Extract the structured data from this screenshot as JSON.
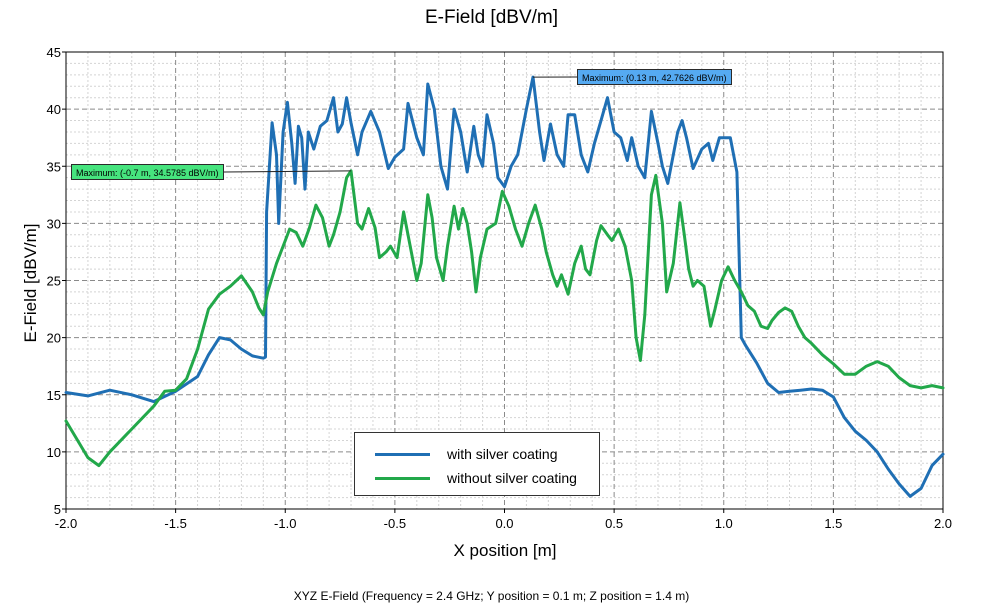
{
  "chart_data": {
    "type": "line",
    "title": "E-Field [dBV/m]",
    "xlabel": "X position [m]",
    "ylabel": "E-Field [dBV/m]",
    "footer": "XYZ E-Field (Frequency = 2.4 GHz; Y position = 0.1 m; Z position = 1.4 m)",
    "xlim": [
      -2.0,
      2.0
    ],
    "ylim": [
      5,
      45
    ],
    "xticks": [
      "-2.0",
      "-1.5",
      "-1.0",
      "-0.5",
      "0.0",
      "0.5",
      "1.0",
      "1.5",
      "2.0"
    ],
    "yticks": [
      "5",
      "10",
      "15",
      "20",
      "25",
      "30",
      "35",
      "40",
      "45"
    ],
    "grid": true,
    "legend_position": "bottom-center",
    "series": [
      {
        "name": "with silver coating",
        "color": "#1f6fb4",
        "points": [
          [
            -2.0,
            15.2
          ],
          [
            -1.9,
            14.9
          ],
          [
            -1.8,
            15.4
          ],
          [
            -1.7,
            15.0
          ],
          [
            -1.6,
            14.4
          ],
          [
            -1.5,
            15.3
          ],
          [
            -1.4,
            16.6
          ],
          [
            -1.35,
            18.5
          ],
          [
            -1.3,
            20.0
          ],
          [
            -1.25,
            19.8
          ],
          [
            -1.2,
            19.0
          ],
          [
            -1.15,
            18.4
          ],
          [
            -1.1,
            18.2
          ],
          [
            -1.09,
            18.3
          ],
          [
            -1.085,
            31.0
          ],
          [
            -1.06,
            38.8
          ],
          [
            -1.04,
            36.0
          ],
          [
            -1.03,
            30.0
          ],
          [
            -1.01,
            38.0
          ],
          [
            -0.99,
            40.6
          ],
          [
            -0.97,
            37.0
          ],
          [
            -0.955,
            33.5
          ],
          [
            -0.94,
            38.5
          ],
          [
            -0.925,
            37.5
          ],
          [
            -0.91,
            33.0
          ],
          [
            -0.895,
            38.0
          ],
          [
            -0.87,
            36.5
          ],
          [
            -0.84,
            38.5
          ],
          [
            -0.81,
            39.0
          ],
          [
            -0.78,
            41.0
          ],
          [
            -0.76,
            38.0
          ],
          [
            -0.74,
            38.7
          ],
          [
            -0.72,
            41.0
          ],
          [
            -0.7,
            38.8
          ],
          [
            -0.67,
            36.0
          ],
          [
            -0.65,
            38.0
          ],
          [
            -0.61,
            39.8
          ],
          [
            -0.57,
            38.0
          ],
          [
            -0.53,
            34.8
          ],
          [
            -0.5,
            35.8
          ],
          [
            -0.46,
            36.5
          ],
          [
            -0.44,
            40.5
          ],
          [
            -0.4,
            37.5
          ],
          [
            -0.37,
            36.0
          ],
          [
            -0.35,
            42.2
          ],
          [
            -0.32,
            40.0
          ],
          [
            -0.29,
            35.0
          ],
          [
            -0.26,
            33.0
          ],
          [
            -0.23,
            40.0
          ],
          [
            -0.2,
            38.0
          ],
          [
            -0.17,
            34.5
          ],
          [
            -0.14,
            38.5
          ],
          [
            -0.12,
            36.0
          ],
          [
            -0.1,
            35.0
          ],
          [
            -0.08,
            39.5
          ],
          [
            -0.05,
            37.0
          ],
          [
            -0.03,
            34.0
          ],
          [
            0.0,
            33.2
          ],
          [
            0.03,
            35.0
          ],
          [
            0.06,
            36.0
          ],
          [
            0.1,
            40.0
          ],
          [
            0.13,
            42.8
          ],
          [
            0.16,
            38.0
          ],
          [
            0.18,
            35.5
          ],
          [
            0.21,
            38.7
          ],
          [
            0.24,
            36.0
          ],
          [
            0.27,
            35.0
          ],
          [
            0.29,
            39.5
          ],
          [
            0.32,
            39.5
          ],
          [
            0.35,
            36.0
          ],
          [
            0.38,
            34.5
          ],
          [
            0.41,
            37.0
          ],
          [
            0.44,
            39.0
          ],
          [
            0.47,
            41.0
          ],
          [
            0.5,
            38.0
          ],
          [
            0.53,
            37.5
          ],
          [
            0.56,
            35.5
          ],
          [
            0.58,
            37.5
          ],
          [
            0.61,
            35.0
          ],
          [
            0.64,
            34.0
          ],
          [
            0.67,
            39.8
          ],
          [
            0.7,
            37.0
          ],
          [
            0.72,
            35.0
          ],
          [
            0.745,
            33.5
          ],
          [
            0.77,
            36.0
          ],
          [
            0.79,
            38.0
          ],
          [
            0.81,
            39.0
          ],
          [
            0.83,
            37.5
          ],
          [
            0.86,
            34.8
          ],
          [
            0.9,
            36.5
          ],
          [
            0.93,
            37.0
          ],
          [
            0.95,
            35.5
          ],
          [
            0.98,
            37.5
          ],
          [
            1.0,
            37.5
          ],
          [
            1.03,
            37.5
          ],
          [
            1.06,
            34.5
          ],
          [
            1.08,
            20.0
          ],
          [
            1.1,
            19.3
          ],
          [
            1.15,
            17.8
          ],
          [
            1.2,
            16.0
          ],
          [
            1.25,
            15.2
          ],
          [
            1.3,
            15.3
          ],
          [
            1.35,
            15.4
          ],
          [
            1.4,
            15.5
          ],
          [
            1.45,
            15.4
          ],
          [
            1.5,
            14.8
          ],
          [
            1.55,
            13.0
          ],
          [
            1.6,
            11.8
          ],
          [
            1.65,
            11.0
          ],
          [
            1.7,
            10.0
          ],
          [
            1.75,
            8.5
          ],
          [
            1.8,
            7.2
          ],
          [
            1.85,
            6.1
          ],
          [
            1.9,
            6.8
          ],
          [
            1.95,
            8.8
          ],
          [
            2.0,
            9.8
          ]
        ]
      },
      {
        "name": "without silver coating",
        "color": "#22a84a",
        "points": [
          [
            -2.0,
            12.7
          ],
          [
            -1.9,
            9.5
          ],
          [
            -1.85,
            8.8
          ],
          [
            -1.8,
            10.0
          ],
          [
            -1.7,
            12.0
          ],
          [
            -1.6,
            14.0
          ],
          [
            -1.55,
            15.3
          ],
          [
            -1.5,
            15.4
          ],
          [
            -1.45,
            16.4
          ],
          [
            -1.4,
            19.0
          ],
          [
            -1.35,
            22.5
          ],
          [
            -1.3,
            23.8
          ],
          [
            -1.25,
            24.5
          ],
          [
            -1.2,
            25.4
          ],
          [
            -1.15,
            24.0
          ],
          [
            -1.12,
            22.6
          ],
          [
            -1.1,
            22.0
          ],
          [
            -1.08,
            24.0
          ],
          [
            -1.04,
            26.5
          ],
          [
            -1.0,
            28.5
          ],
          [
            -0.98,
            29.5
          ],
          [
            -0.95,
            29.2
          ],
          [
            -0.92,
            28.0
          ],
          [
            -0.89,
            29.6
          ],
          [
            -0.86,
            31.6
          ],
          [
            -0.83,
            30.5
          ],
          [
            -0.8,
            28.0
          ],
          [
            -0.78,
            29.0
          ],
          [
            -0.75,
            31.0
          ],
          [
            -0.72,
            34.0
          ],
          [
            -0.7,
            34.6
          ],
          [
            -0.67,
            30.0
          ],
          [
            -0.65,
            29.5
          ],
          [
            -0.62,
            31.3
          ],
          [
            -0.59,
            29.6
          ],
          [
            -0.57,
            27.0
          ],
          [
            -0.54,
            27.5
          ],
          [
            -0.52,
            28.0
          ],
          [
            -0.49,
            27.0
          ],
          [
            -0.46,
            31.0
          ],
          [
            -0.44,
            29.0
          ],
          [
            -0.42,
            27.0
          ],
          [
            -0.4,
            25.0
          ],
          [
            -0.38,
            26.5
          ],
          [
            -0.35,
            32.5
          ],
          [
            -0.33,
            30.5
          ],
          [
            -0.31,
            27.0
          ],
          [
            -0.28,
            25.0
          ],
          [
            -0.26,
            28.0
          ],
          [
            -0.23,
            31.5
          ],
          [
            -0.21,
            29.5
          ],
          [
            -0.19,
            31.3
          ],
          [
            -0.17,
            30.0
          ],
          [
            -0.15,
            27.5
          ],
          [
            -0.13,
            24.0
          ],
          [
            -0.11,
            27.0
          ],
          [
            -0.08,
            29.5
          ],
          [
            -0.04,
            30.0
          ],
          [
            -0.01,
            32.8
          ],
          [
            0.02,
            31.5
          ],
          [
            0.05,
            29.5
          ],
          [
            0.08,
            28.0
          ],
          [
            0.11,
            30.0
          ],
          [
            0.14,
            31.6
          ],
          [
            0.17,
            29.5
          ],
          [
            0.19,
            27.5
          ],
          [
            0.22,
            25.5
          ],
          [
            0.24,
            24.5
          ],
          [
            0.26,
            25.5
          ],
          [
            0.29,
            23.8
          ],
          [
            0.32,
            26.5
          ],
          [
            0.35,
            28.0
          ],
          [
            0.37,
            26.0
          ],
          [
            0.39,
            25.5
          ],
          [
            0.42,
            28.5
          ],
          [
            0.44,
            29.8
          ],
          [
            0.47,
            29.0
          ],
          [
            0.49,
            28.5
          ],
          [
            0.52,
            29.5
          ],
          [
            0.55,
            28.0
          ],
          [
            0.58,
            25.0
          ],
          [
            0.6,
            20.0
          ],
          [
            0.62,
            18.0
          ],
          [
            0.64,
            22.0
          ],
          [
            0.67,
            32.5
          ],
          [
            0.69,
            34.2
          ],
          [
            0.72,
            30.0
          ],
          [
            0.74,
            24.0
          ],
          [
            0.77,
            26.5
          ],
          [
            0.8,
            31.8
          ],
          [
            0.82,
            29.0
          ],
          [
            0.84,
            26.0
          ],
          [
            0.86,
            24.5
          ],
          [
            0.88,
            25.0
          ],
          [
            0.91,
            24.5
          ],
          [
            0.94,
            21.0
          ],
          [
            0.96,
            22.5
          ],
          [
            0.99,
            25.0
          ],
          [
            1.02,
            26.2
          ],
          [
            1.05,
            25.0
          ],
          [
            1.08,
            24.0
          ],
          [
            1.11,
            22.8
          ],
          [
            1.14,
            22.3
          ],
          [
            1.17,
            21.0
          ],
          [
            1.2,
            20.8
          ],
          [
            1.22,
            21.5
          ],
          [
            1.25,
            22.2
          ],
          [
            1.28,
            22.6
          ],
          [
            1.31,
            22.3
          ],
          [
            1.34,
            21.0
          ],
          [
            1.37,
            20.0
          ],
          [
            1.4,
            19.5
          ],
          [
            1.45,
            18.5
          ],
          [
            1.5,
            17.7
          ],
          [
            1.55,
            16.8
          ],
          [
            1.6,
            16.8
          ],
          [
            1.65,
            17.5
          ],
          [
            1.7,
            17.9
          ],
          [
            1.75,
            17.5
          ],
          [
            1.8,
            16.5
          ],
          [
            1.85,
            15.8
          ],
          [
            1.9,
            15.6
          ],
          [
            1.95,
            15.8
          ],
          [
            2.0,
            15.6
          ]
        ]
      }
    ],
    "annotations": [
      {
        "series": 0,
        "x": 0.13,
        "y": 42.8,
        "label": "Maximum: (0.13 m, 42.7626 dBV/m)",
        "color": "#55aaf2"
      },
      {
        "series": 1,
        "x": -0.7,
        "y": 34.6,
        "label": "Maximum: (-0.7 m, 34.5785 dBV/m)",
        "color": "#46e47e"
      }
    ]
  }
}
